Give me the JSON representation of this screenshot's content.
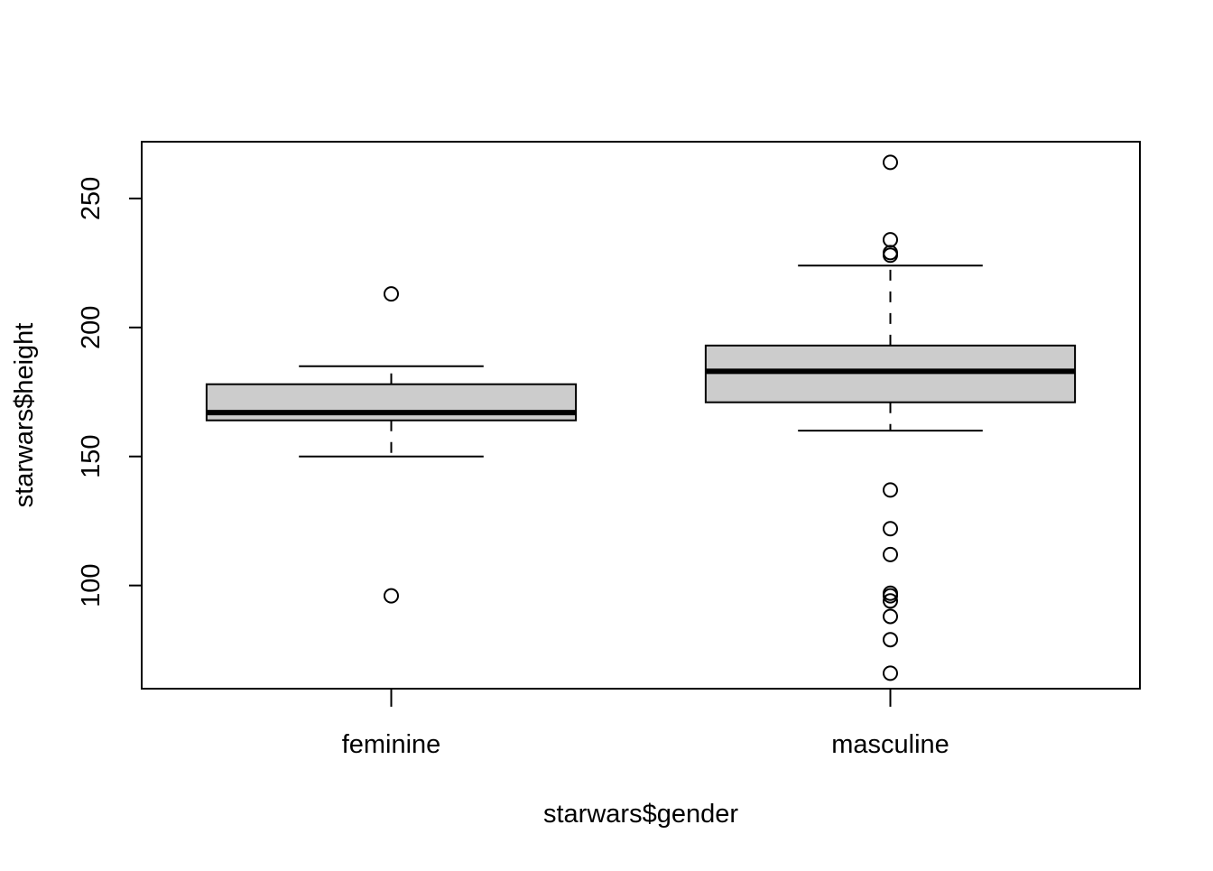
{
  "chart_data": {
    "type": "boxplot",
    "title": "",
    "xlabel": "starwars$gender",
    "ylabel": "starwars$height",
    "ylim": [
      60,
      272
    ],
    "yticks": [
      100,
      150,
      200,
      250
    ],
    "ytick_labels": [
      "100",
      "150",
      "200",
      "250"
    ],
    "grid": false,
    "box_fill": "#cccccc",
    "line_color": "#000000",
    "categories": [
      "feminine",
      "masculine"
    ],
    "boxes": [
      {
        "name": "feminine",
        "whisker_low": 150,
        "q1": 164,
        "median": 167,
        "q3": 178,
        "whisker_high": 185,
        "outliers": [
          213,
          96
        ]
      },
      {
        "name": "masculine",
        "whisker_low": 160,
        "q1": 171,
        "median": 183,
        "q3": 193,
        "whisker_high": 224,
        "outliers": [
          264,
          234,
          229,
          228,
          137,
          122,
          112,
          97,
          96,
          94,
          88,
          79,
          66
        ]
      }
    ]
  }
}
